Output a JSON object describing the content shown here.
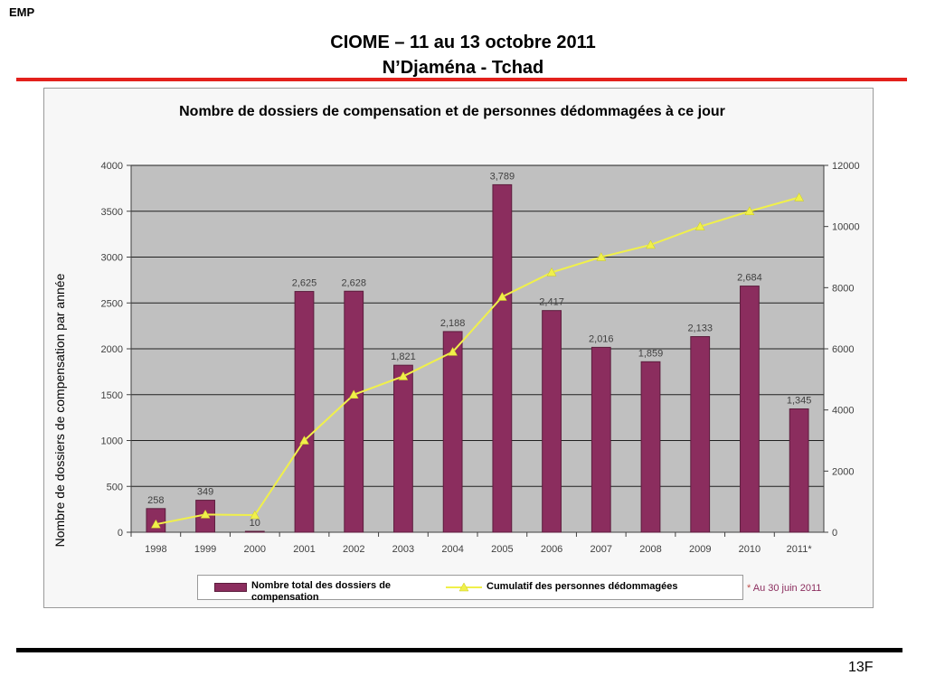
{
  "header": {
    "corner_label": "EMP",
    "title_line1": "CIOME – 11 au 13 octobre 2011",
    "title_line2": "N’Djaména  - Tchad"
  },
  "footer": {
    "page_number": "13F"
  },
  "colors": {
    "bar": "#8b2d5e",
    "line": "#f0f04a",
    "plot_bg": "#c0c0c0",
    "title_rule": "#e3211c",
    "footnote": "#8b2d5e"
  },
  "chart_data": {
    "type": "bar",
    "title": "Nombre de dossiers de compensation et de personnes dédommagées à ce jour",
    "xlabel": "",
    "ylabel": "Nombre de dossiers de compensation par année",
    "categories": [
      "1998",
      "1999",
      "2000",
      "2001",
      "2002",
      "2003",
      "2004",
      "2005",
      "2006",
      "2007",
      "2008",
      "2009",
      "2010",
      "2011*"
    ],
    "series": [
      {
        "name": "Nombre total des dossiers de compensation",
        "type": "bar",
        "axis": "left",
        "values": [
          258,
          349,
          10,
          2625,
          2628,
          1821,
          2188,
          3789,
          2417,
          2016,
          1859,
          2133,
          2684,
          1345
        ],
        "data_labels": [
          "258",
          "349",
          "10",
          "2,625",
          "2,628",
          "1,821",
          "2,188",
          "3,789",
          "2,417",
          "2,016",
          "1,859",
          "2,133",
          "2,684",
          "1,345"
        ]
      },
      {
        "name": "Cumulatif des personnes dédommagées",
        "type": "line",
        "axis": "right",
        "values": [
          260,
          580,
          560,
          3000,
          4500,
          5100,
          5900,
          7700,
          8500,
          9000,
          9400,
          10000,
          10500,
          10950
        ]
      }
    ],
    "ylim": [
      0,
      4000
    ],
    "y_ticks": [
      "0",
      "500",
      "1000",
      "1500",
      "2000",
      "2500",
      "3000",
      "3500",
      "4000"
    ],
    "y2lim": [
      0,
      12000
    ],
    "y2_ticks": [
      "0",
      "2000",
      "4000",
      "6000",
      "8000",
      "10000",
      "12000"
    ],
    "grid": true,
    "legend_position": "bottom",
    "footnote_marker": "*",
    "footnote_text": "Au 30 juin 2011"
  }
}
